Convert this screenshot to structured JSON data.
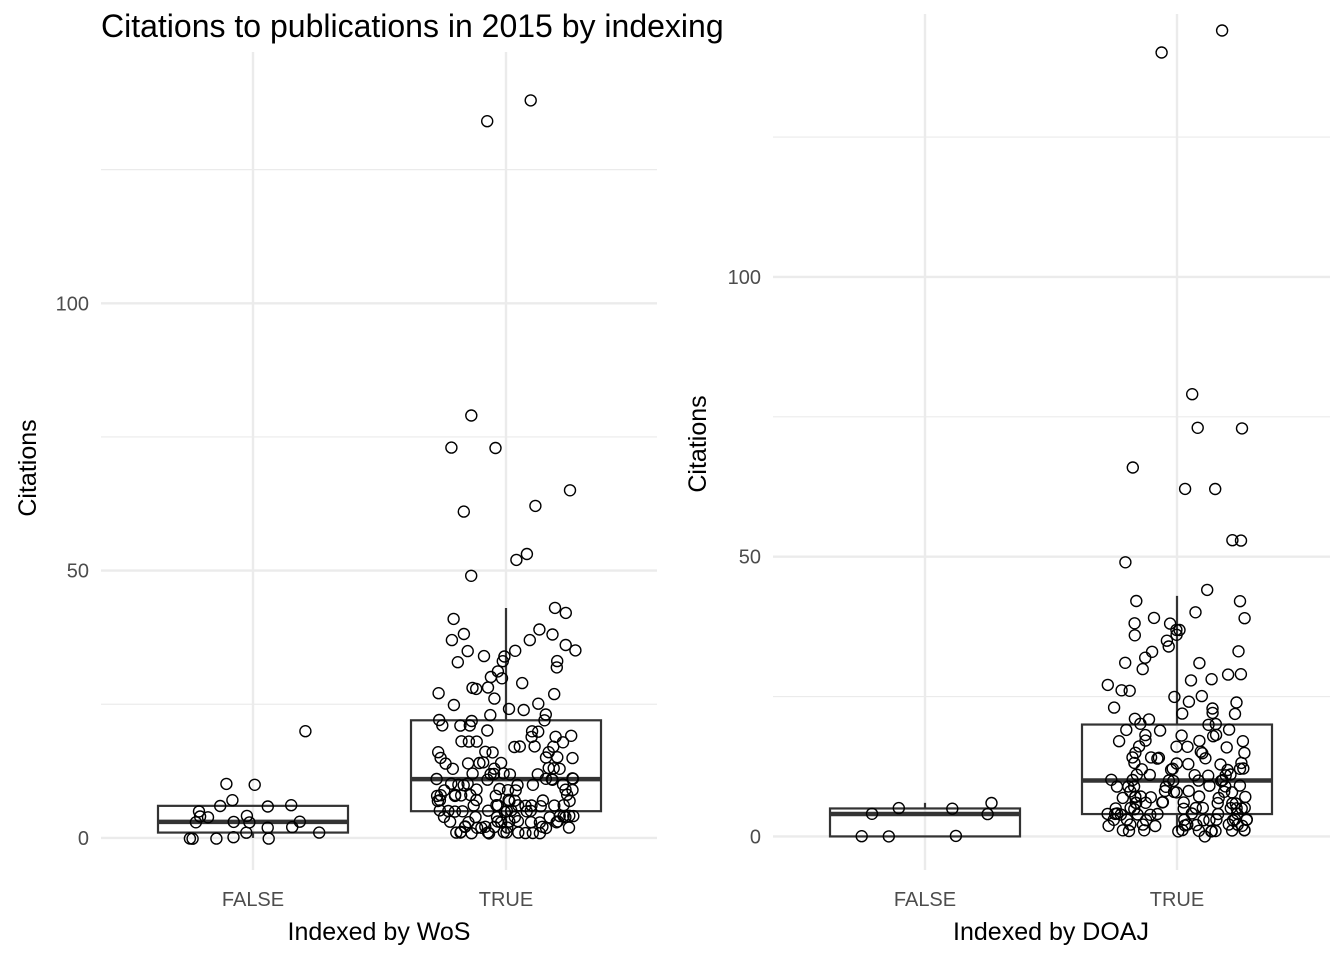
{
  "title": "Citations to publications in 2015 by indexing",
  "chart_data": [
    {
      "type": "boxplot",
      "xlabel": "Indexed by WoS",
      "ylabel": "Citations",
      "categories": [
        "FALSE",
        "TRUE"
      ],
      "ylim": [
        -6,
        147
      ],
      "yticks": [
        0,
        50,
        100
      ],
      "y_minor_gridlines": [
        25,
        75,
        125
      ],
      "grid": true,
      "boxes": [
        {
          "category": "FALSE",
          "whisker_low": 0,
          "q1": 1,
          "median": 3,
          "q3": 6,
          "whisker_high": 6
        },
        {
          "category": "TRUE",
          "whisker_low": 1,
          "q1": 5,
          "median": 11,
          "q3": 22,
          "whisker_high": 43
        }
      ],
      "points": [
        {
          "category": "FALSE",
          "values": [
            0,
            0,
            0,
            0,
            0,
            1,
            1,
            2,
            2,
            3,
            3,
            3,
            3,
            4,
            4,
            4,
            5,
            6,
            6,
            6,
            7,
            10,
            10,
            20
          ]
        },
        {
          "category": "TRUE",
          "values": [
            1,
            1,
            1,
            1,
            1,
            1,
            1,
            1,
            1,
            1,
            1,
            1,
            2,
            2,
            2,
            2,
            2,
            2,
            2,
            2,
            2,
            2,
            3,
            3,
            3,
            3,
            3,
            3,
            3,
            3,
            3,
            3,
            4,
            4,
            4,
            4,
            4,
            4,
            4,
            4,
            4,
            4,
            5,
            5,
            5,
            5,
            5,
            5,
            5,
            5,
            5,
            5,
            6,
            6,
            6,
            6,
            6,
            6,
            6,
            6,
            6,
            7,
            7,
            7,
            7,
            7,
            7,
            7,
            7,
            8,
            8,
            8,
            8,
            8,
            8,
            8,
            8,
            9,
            9,
            9,
            9,
            9,
            9,
            9,
            10,
            10,
            10,
            10,
            10,
            10,
            10,
            11,
            11,
            11,
            11,
            11,
            11,
            11,
            12,
            12,
            12,
            12,
            12,
            12,
            13,
            13,
            13,
            13,
            13,
            14,
            14,
            14,
            14,
            14,
            15,
            15,
            15,
            15,
            16,
            16,
            16,
            16,
            17,
            17,
            17,
            17,
            18,
            18,
            18,
            18,
            19,
            19,
            19,
            20,
            20,
            20,
            21,
            21,
            21,
            22,
            22,
            22,
            23,
            23,
            24,
            24,
            25,
            25,
            26,
            27,
            27,
            28,
            28,
            28,
            29,
            30,
            30,
            31,
            32,
            33,
            33,
            33,
            34,
            34,
            35,
            35,
            35,
            36,
            37,
            37,
            38,
            38,
            39,
            41,
            42,
            43,
            49,
            52,
            53,
            61,
            62,
            65,
            73,
            73,
            79,
            134,
            138
          ]
        }
      ]
    },
    {
      "type": "boxplot",
      "xlabel": "Indexed by DOAJ",
      "ylabel": "Citations",
      "categories": [
        "FALSE",
        "TRUE"
      ],
      "ylim": [
        -6,
        147
      ],
      "yticks": [
        0,
        50,
        100
      ],
      "y_minor_gridlines": [
        25,
        75,
        125
      ],
      "grid": true,
      "boxes": [
        {
          "category": "FALSE",
          "whisker_low": 0,
          "q1": 0,
          "median": 4,
          "q3": 5,
          "whisker_high": 6
        },
        {
          "category": "TRUE",
          "whisker_low": 1,
          "q1": 4,
          "median": 10,
          "q3": 20,
          "whisker_high": 43
        }
      ],
      "points": [
        {
          "category": "FALSE",
          "values": [
            0,
            0,
            0,
            4,
            4,
            5,
            5,
            6
          ]
        },
        {
          "category": "TRUE",
          "values": [
            0,
            1,
            1,
            1,
            1,
            1,
            1,
            1,
            1,
            1,
            1,
            1,
            1,
            2,
            2,
            2,
            2,
            2,
            2,
            2,
            2,
            2,
            2,
            3,
            3,
            3,
            3,
            3,
            3,
            3,
            3,
            3,
            3,
            3,
            4,
            4,
            4,
            4,
            4,
            4,
            4,
            4,
            4,
            4,
            5,
            5,
            5,
            5,
            5,
            5,
            5,
            5,
            5,
            5,
            6,
            6,
            6,
            6,
            6,
            6,
            6,
            6,
            6,
            7,
            7,
            7,
            7,
            7,
            7,
            7,
            7,
            8,
            8,
            8,
            8,
            8,
            8,
            8,
            9,
            9,
            9,
            9,
            9,
            9,
            9,
            10,
            10,
            10,
            10,
            10,
            10,
            10,
            11,
            11,
            11,
            11,
            11,
            11,
            12,
            12,
            12,
            12,
            12,
            12,
            13,
            13,
            13,
            13,
            13,
            14,
            14,
            14,
            14,
            14,
            15,
            15,
            15,
            15,
            16,
            16,
            16,
            16,
            17,
            17,
            17,
            17,
            18,
            18,
            18,
            18,
            19,
            19,
            19,
            20,
            20,
            20,
            21,
            21,
            22,
            22,
            22,
            23,
            23,
            24,
            24,
            25,
            25,
            26,
            26,
            27,
            28,
            28,
            29,
            29,
            30,
            31,
            31,
            32,
            33,
            33,
            34,
            35,
            36,
            36,
            37,
            37,
            38,
            38,
            39,
            39,
            40,
            42,
            42,
            44,
            49,
            53,
            53,
            62,
            62,
            66,
            73,
            73,
            79,
            140,
            144
          ]
        }
      ]
    }
  ]
}
